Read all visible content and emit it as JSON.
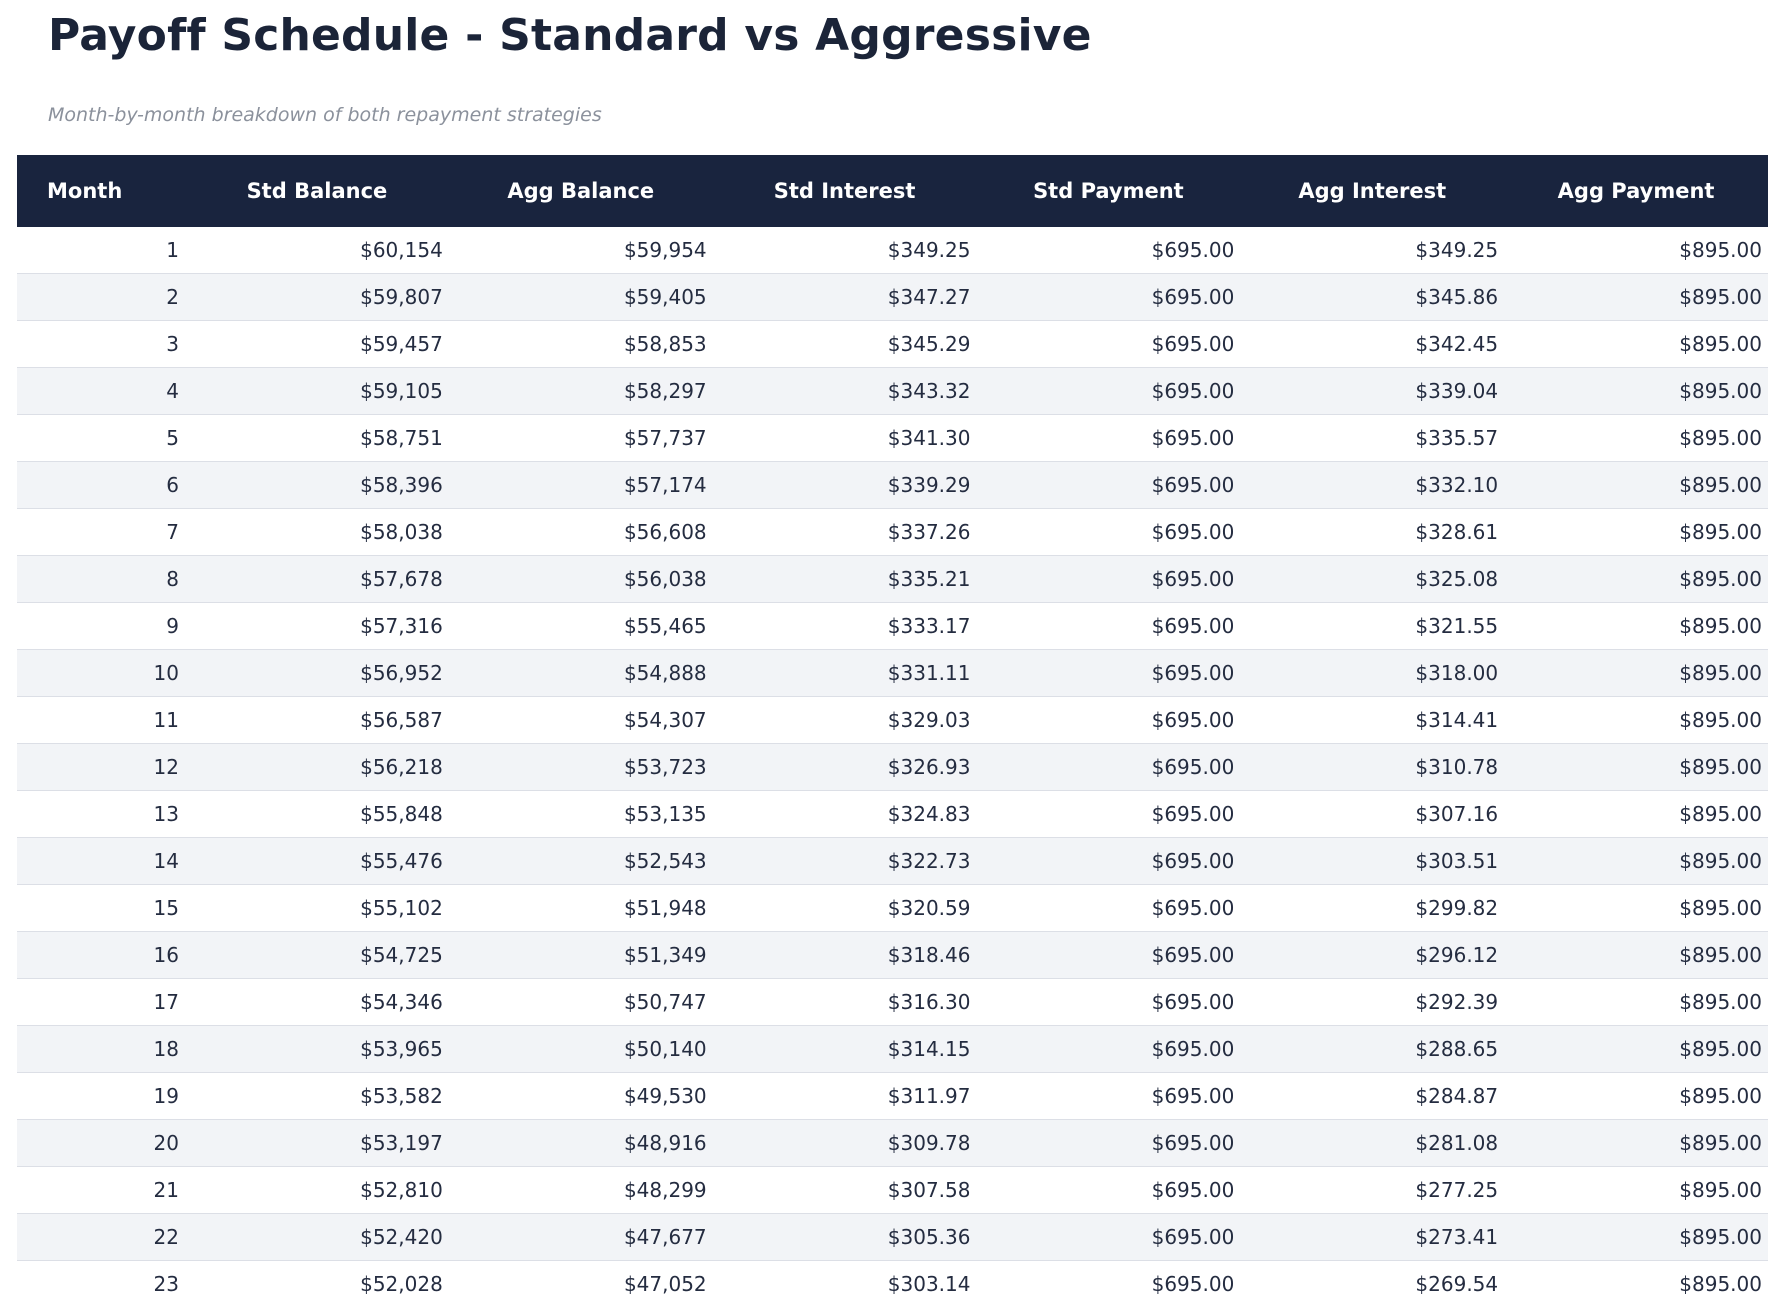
{
  "page": {
    "title": "Payoff Schedule - Standard vs Aggressive",
    "subtitle": "Month-by-month breakdown of both repayment strategies"
  },
  "colors": {
    "navy_header": "#19243e",
    "title_text": "#1b2438",
    "row_alt": "#f2f4f7",
    "row_border": "#dcdfe6",
    "cell_text": "#242c40",
    "subtitle_text": "#8b919c",
    "header_text": "#ffffff"
  },
  "table": {
    "columns": [
      "Month",
      "Std Balance",
      "Agg Balance",
      "Std Interest",
      "Std Payment",
      "Agg Interest",
      "Agg Payment"
    ],
    "rows": [
      [
        "1",
        "$60,154",
        "$59,954",
        "$349.25",
        "$695.00",
        "$349.25",
        "$895.00"
      ],
      [
        "2",
        "$59,807",
        "$59,405",
        "$347.27",
        "$695.00",
        "$345.86",
        "$895.00"
      ],
      [
        "3",
        "$59,457",
        "$58,853",
        "$345.29",
        "$695.00",
        "$342.45",
        "$895.00"
      ],
      [
        "4",
        "$59,105",
        "$58,297",
        "$343.32",
        "$695.00",
        "$339.04",
        "$895.00"
      ],
      [
        "5",
        "$58,751",
        "$57,737",
        "$341.30",
        "$695.00",
        "$335.57",
        "$895.00"
      ],
      [
        "6",
        "$58,396",
        "$57,174",
        "$339.29",
        "$695.00",
        "$332.10",
        "$895.00"
      ],
      [
        "7",
        "$58,038",
        "$56,608",
        "$337.26",
        "$695.00",
        "$328.61",
        "$895.00"
      ],
      [
        "8",
        "$57,678",
        "$56,038",
        "$335.21",
        "$695.00",
        "$325.08",
        "$895.00"
      ],
      [
        "9",
        "$57,316",
        "$55,465",
        "$333.17",
        "$695.00",
        "$321.55",
        "$895.00"
      ],
      [
        "10",
        "$56,952",
        "$54,888",
        "$331.11",
        "$695.00",
        "$318.00",
        "$895.00"
      ],
      [
        "11",
        "$56,587",
        "$54,307",
        "$329.03",
        "$695.00",
        "$314.41",
        "$895.00"
      ],
      [
        "12",
        "$56,218",
        "$53,723",
        "$326.93",
        "$695.00",
        "$310.78",
        "$895.00"
      ],
      [
        "13",
        "$55,848",
        "$53,135",
        "$324.83",
        "$695.00",
        "$307.16",
        "$895.00"
      ],
      [
        "14",
        "$55,476",
        "$52,543",
        "$322.73",
        "$695.00",
        "$303.51",
        "$895.00"
      ],
      [
        "15",
        "$55,102",
        "$51,948",
        "$320.59",
        "$695.00",
        "$299.82",
        "$895.00"
      ],
      [
        "16",
        "$54,725",
        "$51,349",
        "$318.46",
        "$695.00",
        "$296.12",
        "$895.00"
      ],
      [
        "17",
        "$54,346",
        "$50,747",
        "$316.30",
        "$695.00",
        "$292.39",
        "$895.00"
      ],
      [
        "18",
        "$53,965",
        "$50,140",
        "$314.15",
        "$695.00",
        "$288.65",
        "$895.00"
      ],
      [
        "19",
        "$53,582",
        "$49,530",
        "$311.97",
        "$695.00",
        "$284.87",
        "$895.00"
      ],
      [
        "20",
        "$53,197",
        "$48,916",
        "$309.78",
        "$695.00",
        "$281.08",
        "$895.00"
      ],
      [
        "21",
        "$52,810",
        "$48,299",
        "$307.58",
        "$695.00",
        "$277.25",
        "$895.00"
      ],
      [
        "22",
        "$52,420",
        "$47,677",
        "$305.36",
        "$695.00",
        "$273.41",
        "$895.00"
      ],
      [
        "23",
        "$52,028",
        "$47,052",
        "$303.14",
        "$695.00",
        "$269.54",
        "$895.00"
      ]
    ]
  }
}
